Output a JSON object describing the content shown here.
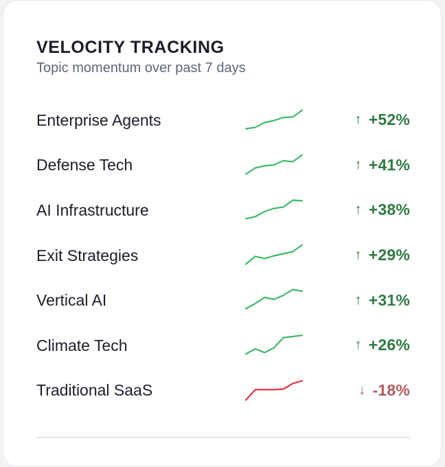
{
  "header": {
    "title": "VELOCITY TRACKING",
    "subtitle": "Topic momentum over past 7 days"
  },
  "colors": {
    "up_line": "#3fb96a",
    "up_text": "#2f7a43",
    "down_line": "#e6333f",
    "down_text": "#b35a5a"
  },
  "topics": [
    {
      "label": "Enterprise Agents",
      "change": "+52%",
      "direction": "up",
      "arrow": "↑",
      "trend": [
        0.05,
        0.12,
        0.35,
        0.45,
        0.6,
        0.62,
        0.95
      ]
    },
    {
      "label": "Defense Tech",
      "change": "+41%",
      "direction": "up",
      "arrow": "↑",
      "trend": [
        0.05,
        0.35,
        0.45,
        0.5,
        0.7,
        0.65,
        0.98
      ]
    },
    {
      "label": "AI Infrastructure",
      "change": "+38%",
      "direction": "up",
      "arrow": "↑",
      "trend": [
        0.05,
        0.15,
        0.4,
        0.55,
        0.62,
        0.95,
        0.92
      ]
    },
    {
      "label": "Exit Strategies",
      "change": "+29%",
      "direction": "up",
      "arrow": "↑",
      "trend": [
        0.05,
        0.42,
        0.32,
        0.45,
        0.55,
        0.65,
        0.98
      ]
    },
    {
      "label": "Vertical AI",
      "change": "+31%",
      "direction": "up",
      "arrow": "↑",
      "trend": [
        0.05,
        0.3,
        0.6,
        0.5,
        0.7,
        0.98,
        0.9
      ]
    },
    {
      "label": "Climate Tech",
      "change": "+26%",
      "direction": "up",
      "arrow": "↑",
      "trend": [
        0.05,
        0.3,
        0.12,
        0.35,
        0.85,
        0.9,
        0.96
      ]
    },
    {
      "label": "Traditional SaaS",
      "change": "-18%",
      "direction": "down",
      "arrow": "↓",
      "trend": [
        0.02,
        0.52,
        0.52,
        0.52,
        0.55,
        0.82,
        0.95
      ]
    }
  ]
}
